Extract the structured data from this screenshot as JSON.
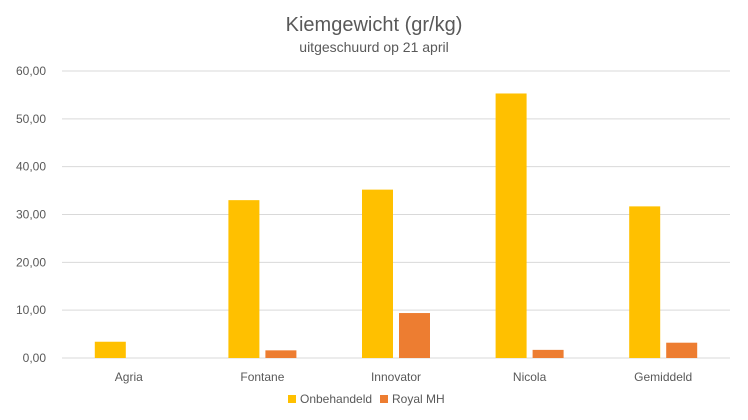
{
  "chart_data": {
    "type": "bar",
    "title": "Kiemgewicht (gr/kg)",
    "subtitle": "uitgeschuurd op 21 april",
    "xlabel": "",
    "ylabel": "",
    "categories": [
      "Agria",
      "Fontane",
      "Innovator",
      "Nicola",
      "Gemiddeld"
    ],
    "series": [
      {
        "name": "Onbehandeld",
        "color": "#FFC000",
        "values": [
          3.4,
          33.0,
          35.2,
          55.3,
          31.7
        ]
      },
      {
        "name": "Royal MH",
        "color": "#ED7D31",
        "values": [
          0.0,
          1.6,
          9.4,
          1.7,
          3.2
        ]
      }
    ],
    "ylim": [
      0,
      60
    ],
    "yticks": [
      "0,00",
      "10,00",
      "20,00",
      "30,00",
      "40,00",
      "50,00",
      "60,00"
    ],
    "grid": true,
    "legend_position": "bottom"
  }
}
